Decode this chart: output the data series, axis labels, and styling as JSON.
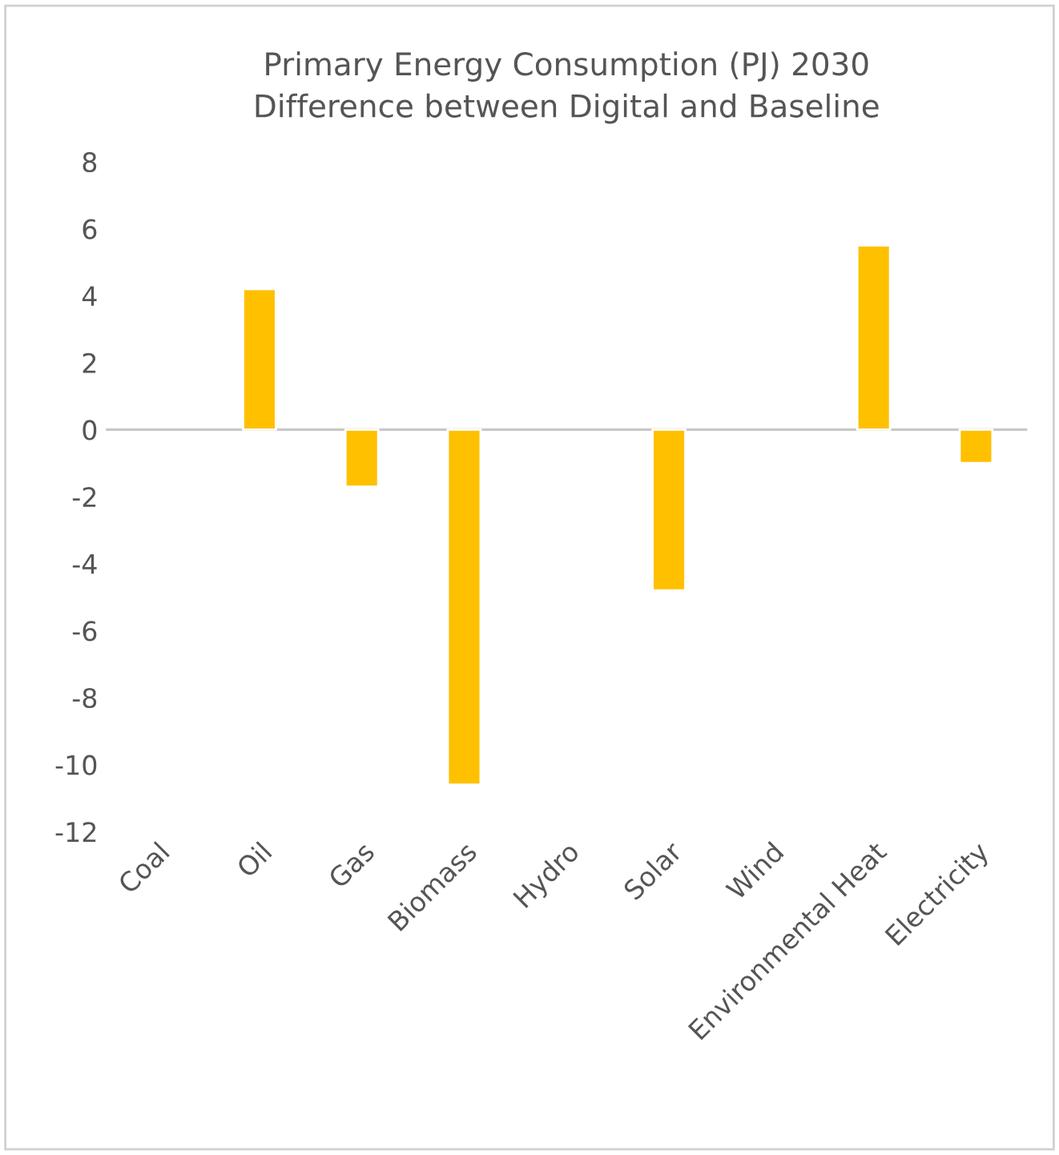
{
  "chart_data": {
    "type": "bar",
    "title": "Primary Energy Consumption (PJ) 2030\nDifference between Digital and Baseline",
    "categories": [
      "Coal",
      "Oil",
      "Gas",
      "Biomass",
      "Hydro",
      "Solar",
      "Wind",
      "Environmental Heat",
      "Electricity"
    ],
    "values": [
      null,
      4.2,
      -1.7,
      -10.6,
      null,
      -4.8,
      null,
      5.5,
      -1.0
    ],
    "color": "#ffc000",
    "ylim": [
      -12,
      8
    ],
    "yticks": [
      -12,
      -10,
      -8,
      -6,
      -4,
      -2,
      0,
      2,
      4,
      6,
      8
    ],
    "grid": false,
    "ref_lines": [
      {
        "axis": "y",
        "value": 0,
        "color": "#c8c8c8"
      }
    ]
  }
}
